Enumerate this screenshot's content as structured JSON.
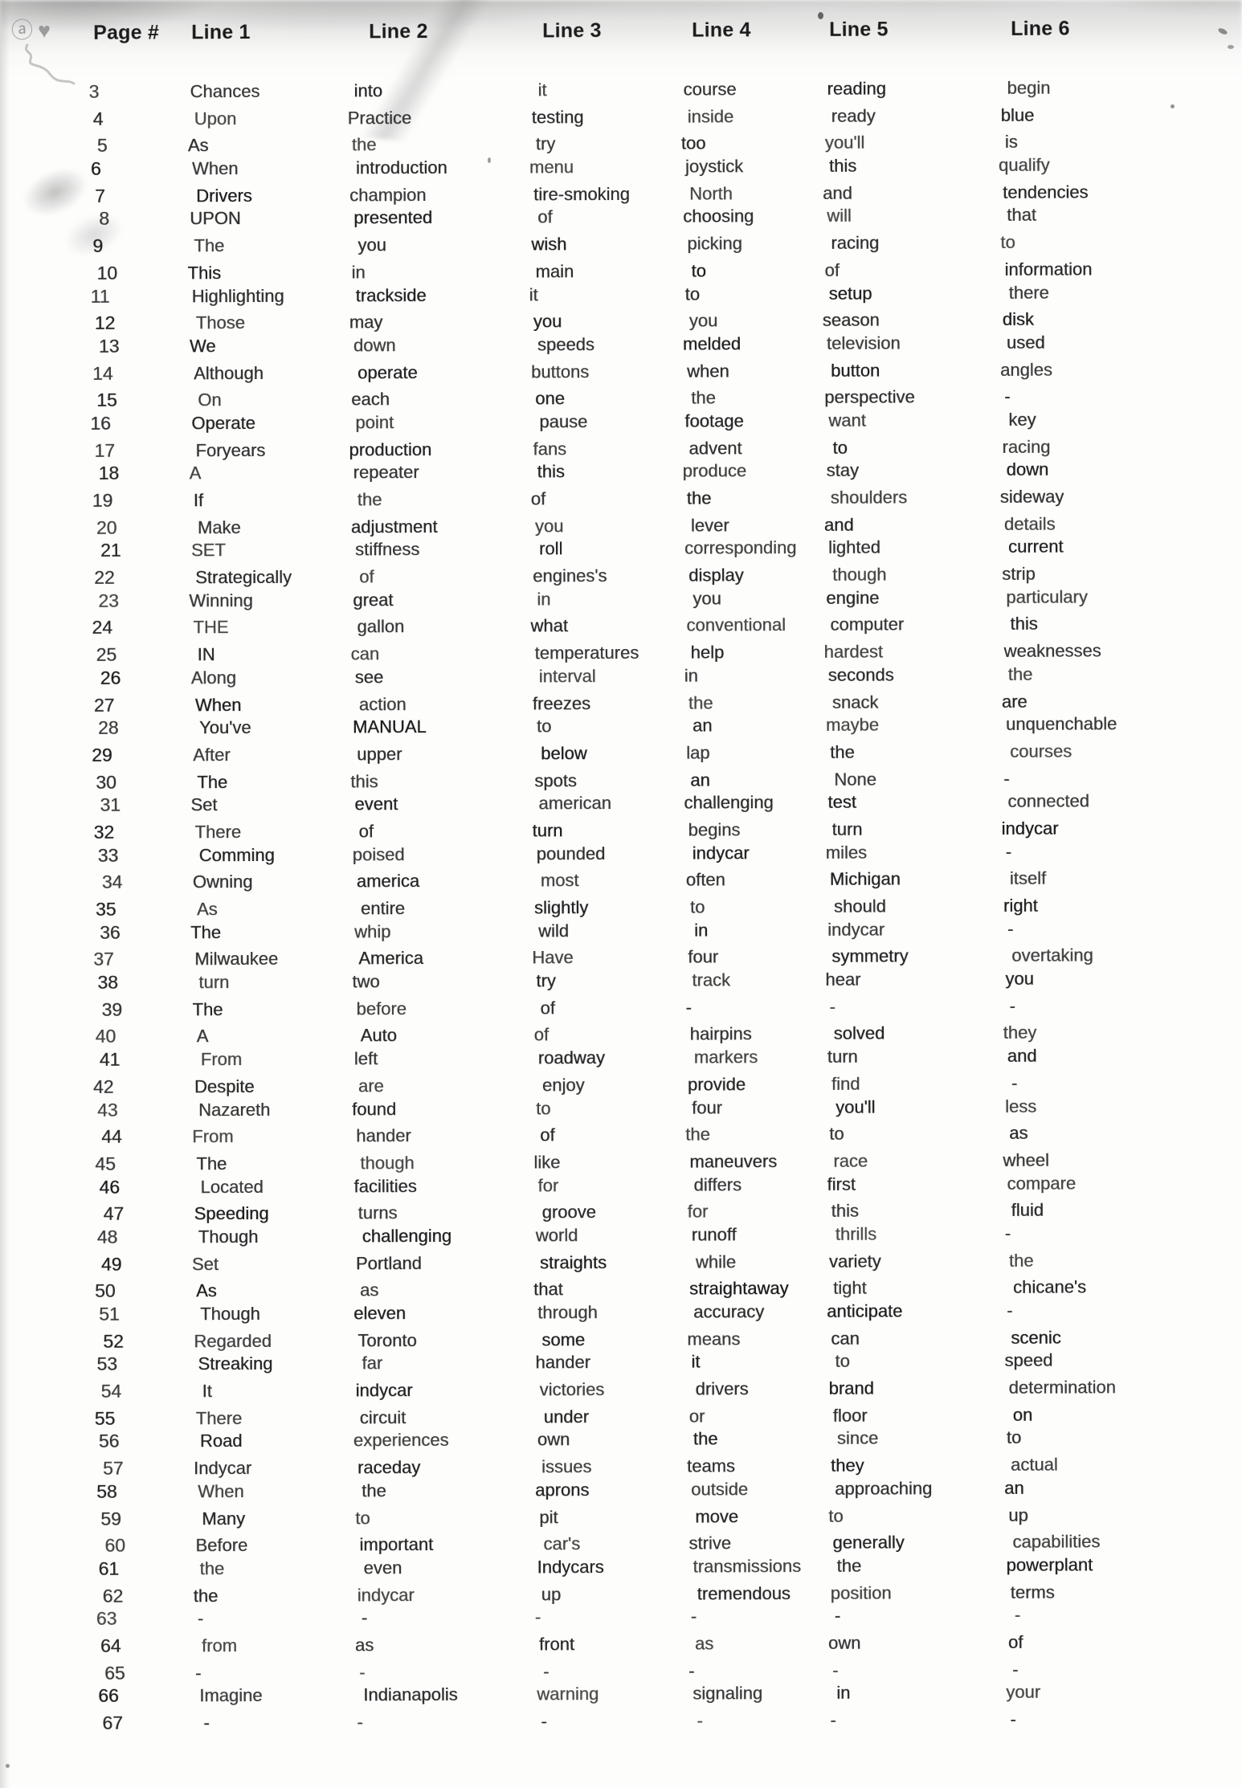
{
  "page": {
    "corner_mark": "ⓐ♥"
  },
  "table": {
    "headers": [
      "Page #",
      "Line 1",
      "Line 2",
      "Line 3",
      "Line 4",
      "Line 5",
      "Line 6"
    ],
    "rows": [
      {
        "page": "3",
        "cells": [
          "Chances",
          "into",
          "it",
          "course",
          "reading",
          "begin"
        ]
      },
      {
        "page": "4",
        "cells": [
          "Upon",
          "Practice",
          "testing",
          "inside",
          "ready",
          "blue"
        ]
      },
      {
        "page": "5",
        "cells": [
          "As",
          "the",
          "try",
          "too",
          "you'll",
          "is"
        ]
      },
      {
        "page": "6",
        "cells": [
          "When",
          "introduction",
          "menu",
          "joystick",
          "this",
          "qualify"
        ]
      },
      {
        "page": "7",
        "cells": [
          "Drivers",
          "champion",
          "tire-smoking",
          "North",
          "and",
          "tendencies"
        ]
      },
      {
        "page": "8",
        "cells": [
          "UPON",
          "presented",
          "of",
          "choosing",
          "will",
          "that"
        ]
      },
      {
        "page": "9",
        "cells": [
          "The",
          "you",
          "wish",
          "picking",
          "racing",
          "to"
        ]
      },
      {
        "page": "10",
        "cells": [
          "This",
          "in",
          "main",
          "to",
          "of",
          "information"
        ]
      },
      {
        "page": "11",
        "cells": [
          "Highlighting",
          "trackside",
          "it",
          "to",
          "setup",
          "there"
        ]
      },
      {
        "page": "12",
        "cells": [
          "Those",
          "may",
          "you",
          "you",
          "season",
          "disk"
        ]
      },
      {
        "page": "13",
        "cells": [
          "We",
          "down",
          "speeds",
          "melded",
          "television",
          "used"
        ]
      },
      {
        "page": "14",
        "cells": [
          "Although",
          "operate",
          "buttons",
          "when",
          "button",
          "angles"
        ]
      },
      {
        "page": "15",
        "cells": [
          "On",
          "each",
          "one",
          "the",
          "perspective",
          "-"
        ]
      },
      {
        "page": "16",
        "cells": [
          "Operate",
          "point",
          "pause",
          "footage",
          "want",
          "key"
        ]
      },
      {
        "page": "17",
        "cells": [
          "Foryears",
          "production",
          "fans",
          "advent",
          "to",
          "racing"
        ]
      },
      {
        "page": "18",
        "cells": [
          "A",
          "repeater",
          "this",
          "produce",
          "stay",
          "down"
        ]
      },
      {
        "page": "19",
        "cells": [
          "If",
          "the",
          "of",
          "the",
          "shoulders",
          "sideway"
        ]
      },
      {
        "page": "20",
        "cells": [
          "Make",
          "adjustment",
          "you",
          "lever",
          "and",
          "details"
        ]
      },
      {
        "page": "21",
        "cells": [
          "SET",
          "stiffness",
          "roll",
          "corresponding",
          "lighted",
          "current"
        ]
      },
      {
        "page": "22",
        "cells": [
          "Strategically",
          "of",
          "engines's",
          "display",
          "though",
          "strip"
        ]
      },
      {
        "page": "23",
        "cells": [
          "Winning",
          "great",
          "in",
          "you",
          "engine",
          "particulary"
        ]
      },
      {
        "page": "24",
        "cells": [
          "THE",
          "gallon",
          "what",
          "conventional",
          "computer",
          "this"
        ]
      },
      {
        "page": "25",
        "cells": [
          "IN",
          "can",
          "temperatures",
          "help",
          "hardest",
          "weaknesses"
        ]
      },
      {
        "page": "26",
        "cells": [
          "Along",
          "see",
          "interval",
          "in",
          "seconds",
          "the"
        ]
      },
      {
        "page": "27",
        "cells": [
          "When",
          "action",
          "freezes",
          "the",
          "snack",
          "are"
        ]
      },
      {
        "page": "28",
        "cells": [
          "You've",
          "MANUAL",
          "to",
          "an",
          "maybe",
          "unquenchable"
        ]
      },
      {
        "page": "29",
        "cells": [
          "After",
          "upper",
          "below",
          "lap",
          "the",
          "courses"
        ]
      },
      {
        "page": "30",
        "cells": [
          "The",
          "this",
          "spots",
          "an",
          "None",
          "-"
        ]
      },
      {
        "page": "31",
        "cells": [
          "Set",
          "event",
          "american",
          "challenging",
          "test",
          "connected"
        ]
      },
      {
        "page": "32",
        "cells": [
          "There",
          "of",
          "turn",
          "begins",
          "turn",
          "indycar"
        ]
      },
      {
        "page": "33",
        "cells": [
          "Comming",
          "poised",
          "pounded",
          "indycar",
          "miles",
          "-"
        ]
      },
      {
        "page": "34",
        "cells": [
          "Owning",
          "america",
          "most",
          "often",
          "Michigan",
          "itself"
        ]
      },
      {
        "page": "35",
        "cells": [
          "As",
          "entire",
          "slightly",
          "to",
          "should",
          "right"
        ]
      },
      {
        "page": "36",
        "cells": [
          "The",
          "whip",
          "wild",
          "in",
          "indycar",
          "-"
        ]
      },
      {
        "page": "37",
        "cells": [
          "Milwaukee",
          "America",
          "Have",
          "four",
          "symmetry",
          "overtaking"
        ]
      },
      {
        "page": "38",
        "cells": [
          "turn",
          "two",
          "try",
          "track",
          "hear",
          "you"
        ]
      },
      {
        "page": "39",
        "cells": [
          "The",
          "before",
          "of",
          "-",
          "-",
          "-"
        ]
      },
      {
        "page": "40",
        "cells": [
          "A",
          "Auto",
          "of",
          "hairpins",
          "solved",
          "they"
        ]
      },
      {
        "page": "41",
        "cells": [
          "From",
          "left",
          "roadway",
          "markers",
          "turn",
          "and"
        ]
      },
      {
        "page": "42",
        "cells": [
          "Despite",
          "are",
          "enjoy",
          "provide",
          "find",
          "-"
        ]
      },
      {
        "page": "43",
        "cells": [
          "Nazareth",
          "found",
          "to",
          "four",
          "you'll",
          "less"
        ]
      },
      {
        "page": "44",
        "cells": [
          "From",
          "hander",
          "of",
          "the",
          "to",
          "as"
        ]
      },
      {
        "page": "45",
        "cells": [
          "The",
          "though",
          "like",
          "maneuvers",
          "race",
          "wheel"
        ]
      },
      {
        "page": "46",
        "cells": [
          "Located",
          "facilities",
          "for",
          "differs",
          "first",
          "compare"
        ]
      },
      {
        "page": "47",
        "cells": [
          "Speeding",
          "turns",
          "groove",
          "for",
          "this",
          "fluid"
        ]
      },
      {
        "page": "48",
        "cells": [
          "Though",
          "challenging",
          "world",
          "runoff",
          "thrills",
          "-"
        ]
      },
      {
        "page": "49",
        "cells": [
          "Set",
          "Portland",
          "straights",
          "while",
          "variety",
          "the"
        ]
      },
      {
        "page": "50",
        "cells": [
          "As",
          "as",
          "that",
          "straightaway",
          "tight",
          "chicane's"
        ]
      },
      {
        "page": "51",
        "cells": [
          "Though",
          "eleven",
          "through",
          "accuracy",
          "anticipate",
          "-"
        ]
      },
      {
        "page": "52",
        "cells": [
          "Regarded",
          "Toronto",
          "some",
          "means",
          "can",
          "scenic"
        ]
      },
      {
        "page": "53",
        "cells": [
          "Streaking",
          "far",
          "hander",
          "it",
          "to",
          "speed"
        ]
      },
      {
        "page": "54",
        "cells": [
          "It",
          "indycar",
          "victories",
          "drivers",
          "brand",
          "determination"
        ]
      },
      {
        "page": "55",
        "cells": [
          "There",
          "circuit",
          "under",
          "or",
          "floor",
          "on"
        ]
      },
      {
        "page": "56",
        "cells": [
          "Road",
          "experiences",
          "own",
          "the",
          "since",
          "to"
        ]
      },
      {
        "page": "57",
        "cells": [
          "Indycar",
          "raceday",
          "issues",
          "teams",
          "they",
          "actual"
        ]
      },
      {
        "page": "58",
        "cells": [
          "When",
          "the",
          "aprons",
          "outside",
          "approaching",
          "an"
        ]
      },
      {
        "page": "59",
        "cells": [
          "Many",
          "to",
          "pit",
          "move",
          "to",
          "up"
        ]
      },
      {
        "page": "60",
        "cells": [
          "Before",
          "important",
          "car's",
          "strive",
          "generally",
          "capabilities"
        ]
      },
      {
        "page": "61",
        "cells": [
          "the",
          "even",
          "Indycars",
          "transmissions",
          "the",
          "powerplant"
        ]
      },
      {
        "page": "62",
        "cells": [
          "the",
          "indycar",
          "up",
          "tremendous",
          "position",
          "terms"
        ]
      },
      {
        "page": "63",
        "cells": [
          "-",
          "-",
          "-",
          "-",
          "-",
          "-"
        ]
      },
      {
        "page": "64",
        "cells": [
          "from",
          "as",
          "front",
          "as",
          "own",
          "of"
        ]
      },
      {
        "page": "65",
        "cells": [
          "-",
          "-",
          "-",
          "-",
          "-",
          "-"
        ]
      },
      {
        "page": "66",
        "cells": [
          "Imagine",
          "Indianapolis",
          "warning",
          "signaling",
          "in",
          "your"
        ]
      },
      {
        "page": "67",
        "cells": [
          "-",
          "-",
          "-",
          "-",
          "-",
          "-"
        ]
      }
    ]
  }
}
